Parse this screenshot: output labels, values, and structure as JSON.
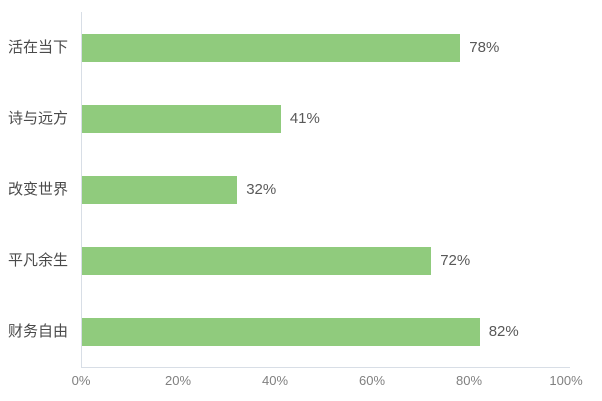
{
  "chart_data": {
    "type": "bar",
    "orientation": "horizontal",
    "title": "",
    "xlabel": "",
    "ylabel": "",
    "categories": [
      "活在当下",
      "诗与远方",
      "改变世界",
      "平凡余生",
      "财务自由"
    ],
    "values": [
      78,
      41,
      32,
      72,
      82
    ],
    "value_labels": [
      "78%",
      "41%",
      "32%",
      "72%",
      "82%"
    ],
    "xticks": [
      "0%",
      "20%",
      "40%",
      "60%",
      "80%",
      "100%"
    ],
    "xtick_values": [
      0,
      20,
      40,
      60,
      80,
      100
    ],
    "xlim": [
      0,
      100
    ],
    "grid": false,
    "legend_position": "none",
    "bar_color": "#90cb7d",
    "axis_color": "#d8dee6",
    "category_label_color": "#4a4a4a",
    "value_label_color": "#595959",
    "tick_label_color": "#808080",
    "background_color": "#ffffff"
  }
}
